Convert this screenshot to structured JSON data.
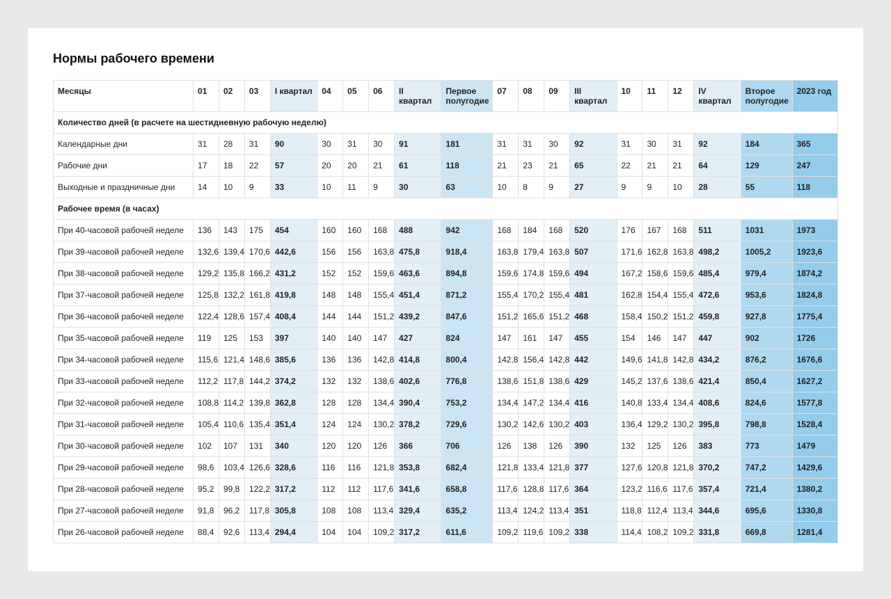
{
  "title": "Нормы рабочего времени",
  "columns": [
    {
      "key": "label",
      "label": "Месяцы",
      "cls": "row-label"
    },
    {
      "key": "m1",
      "label": "01",
      "cls": "m"
    },
    {
      "key": "m2",
      "label": "02",
      "cls": "m"
    },
    {
      "key": "m3",
      "label": "03",
      "cls": "m"
    },
    {
      "key": "q1",
      "label": "I квартал",
      "cls": "qc q1"
    },
    {
      "key": "m4",
      "label": "04",
      "cls": "m"
    },
    {
      "key": "m5",
      "label": "05",
      "cls": "m"
    },
    {
      "key": "m6",
      "label": "06",
      "cls": "m"
    },
    {
      "key": "q2",
      "label": "II квартал",
      "cls": "qc q2"
    },
    {
      "key": "h1",
      "label": "Первое полугодие",
      "cls": "hc h1c"
    },
    {
      "key": "m7",
      "label": "07",
      "cls": "m"
    },
    {
      "key": "m8",
      "label": "08",
      "cls": "m"
    },
    {
      "key": "m9",
      "label": "09",
      "cls": "m"
    },
    {
      "key": "q3",
      "label": "III квартал",
      "cls": "qc q3"
    },
    {
      "key": "m10",
      "label": "10",
      "cls": "m"
    },
    {
      "key": "m11",
      "label": "11",
      "cls": "m"
    },
    {
      "key": "m12",
      "label": "12",
      "cls": "m"
    },
    {
      "key": "q4",
      "label": "IV квартал",
      "cls": "qc q4"
    },
    {
      "key": "h2",
      "label": "Второе полугодие",
      "cls": "hc h2c"
    },
    {
      "key": "yr",
      "label": "2023 год",
      "cls": "yc yr"
    }
  ],
  "sections": [
    {
      "title": "Количество дней (в расчете на шестидневную рабочую неделю)",
      "rows": [
        {
          "label": "Календарные дни",
          "v": [
            "31",
            "28",
            "31",
            "90",
            "30",
            "31",
            "30",
            "91",
            "181",
            "31",
            "31",
            "30",
            "92",
            "31",
            "30",
            "31",
            "92",
            "184",
            "365"
          ]
        },
        {
          "label": "Рабочие дни",
          "v": [
            "17",
            "18",
            "22",
            "57",
            "20",
            "20",
            "21",
            "61",
            "118",
            "21",
            "23",
            "21",
            "65",
            "22",
            "21",
            "21",
            "64",
            "129",
            "247"
          ]
        },
        {
          "label": "Выходные и праздничные дни",
          "v": [
            "14",
            "10",
            "9",
            "33",
            "10",
            "11",
            "9",
            "30",
            "63",
            "10",
            "8",
            "9",
            "27",
            "9",
            "9",
            "10",
            "28",
            "55",
            "118"
          ]
        }
      ]
    },
    {
      "title": "Рабочее время (в часах)",
      "rows": [
        {
          "label": "При 40-часовой рабочей неделе",
          "v": [
            "136",
            "143",
            "175",
            "454",
            "160",
            "160",
            "168",
            "488",
            "942",
            "168",
            "184",
            "168",
            "520",
            "176",
            "167",
            "168",
            "511",
            "1031",
            "1973"
          ]
        },
        {
          "label": "При 39-часовой рабочей неделе",
          "v": [
            "132,6",
            "139,4",
            "170,6",
            "442,6",
            "156",
            "156",
            "163,8",
            "475,8",
            "918,4",
            "163,8",
            "179,4",
            "163,8",
            "507",
            "171,6",
            "162,8",
            "163,8",
            "498,2",
            "1005,2",
            "1923,6"
          ]
        },
        {
          "label": "При 38-часовой рабочей неделе",
          "v": [
            "129,2",
            "135,8",
            "166,2",
            "431,2",
            "152",
            "152",
            "159,6",
            "463,6",
            "894,8",
            "159,6",
            "174,8",
            "159,6",
            "494",
            "167,2",
            "158,6",
            "159,6",
            "485,4",
            "979,4",
            "1874,2"
          ]
        },
        {
          "label": "При 37-часовой рабочей неделе",
          "v": [
            "125,8",
            "132,2",
            "161,8",
            "419,8",
            "148",
            "148",
            "155,4",
            "451,4",
            "871,2",
            "155,4",
            "170,2",
            "155,4",
            "481",
            "162,8",
            "154,4",
            "155,4",
            "472,6",
            "953,6",
            "1824,8"
          ]
        },
        {
          "label": "При 36-часовой рабочей неделе",
          "v": [
            "122,4",
            "128,6",
            "157,4",
            "408,4",
            "144",
            "144",
            "151,2",
            "439,2",
            "847,6",
            "151,2",
            "165,6",
            "151,2",
            "468",
            "158,4",
            "150,2",
            "151,2",
            "459,8",
            "927,8",
            "1775,4"
          ]
        },
        {
          "label": "При 35-часовой рабочей неделе",
          "v": [
            "119",
            "125",
            "153",
            "397",
            "140",
            "140",
            "147",
            "427",
            "824",
            "147",
            "161",
            "147",
            "455",
            "154",
            "146",
            "147",
            "447",
            "902",
            "1726"
          ]
        },
        {
          "label": "При 34-часовой рабочей неделе",
          "v": [
            "115,6",
            "121,4",
            "148,6",
            "385,6",
            "136",
            "136",
            "142,8",
            "414,8",
            "800,4",
            "142,8",
            "156,4",
            "142,8",
            "442",
            "149,6",
            "141,8",
            "142,8",
            "434,2",
            "876,2",
            "1676,6"
          ]
        },
        {
          "label": "При 33-часовой рабочей неделе",
          "v": [
            "112,2",
            "117,8",
            "144,2",
            "374,2",
            "132",
            "132",
            "138,6",
            "402,6",
            "776,8",
            "138,6",
            "151,8",
            "138,6",
            "429",
            "145,2",
            "137,6",
            "138,6",
            "421,4",
            "850,4",
            "1627,2"
          ]
        },
        {
          "label": "При 32-часовой рабочей неделе",
          "v": [
            "108,8",
            "114,2",
            "139,8",
            "362,8",
            "128",
            "128",
            "134,4",
            "390,4",
            "753,2",
            "134,4",
            "147,2",
            "134,4",
            "416",
            "140,8",
            "133,4",
            "134,4",
            "408,6",
            "824,6",
            "1577,8"
          ]
        },
        {
          "label": "При 31-часовой рабочей неделе",
          "v": [
            "105,4",
            "110,6",
            "135,4",
            "351,4",
            "124",
            "124",
            "130,2",
            "378,2",
            "729,6",
            "130,2",
            "142,6",
            "130,2",
            "403",
            "136,4",
            "129,2",
            "130,2",
            "395,8",
            "798,8",
            "1528,4"
          ]
        },
        {
          "label": "При 30-часовой рабочей неделе",
          "v": [
            "102",
            "107",
            "131",
            "340",
            "120",
            "120",
            "126",
            "366",
            "706",
            "126",
            "138",
            "126",
            "390",
            "132",
            "125",
            "126",
            "383",
            "773",
            "1479"
          ]
        },
        {
          "label": "При 29-часовой рабочей неделе",
          "v": [
            "98,6",
            "103,4",
            "126,6",
            "328,6",
            "116",
            "116",
            "121,8",
            "353,8",
            "682,4",
            "121,8",
            "133,4",
            "121,8",
            "377",
            "127,6",
            "120,8",
            "121,8",
            "370,2",
            "747,2",
            "1429,6"
          ]
        },
        {
          "label": "При 28-часовой рабочей неделе",
          "v": [
            "95,2",
            "99,8",
            "122,2",
            "317,2",
            "112",
            "112",
            "117,6",
            "341,6",
            "658,8",
            "117,6",
            "128,8",
            "117,6",
            "364",
            "123,2",
            "116,6",
            "117,6",
            "357,4",
            "721,4",
            "1380,2"
          ]
        },
        {
          "label": "При 27-часовой рабочей неделе",
          "v": [
            "91,8",
            "96,2",
            "117,8",
            "305,8",
            "108",
            "108",
            "113,4",
            "329,4",
            "635,2",
            "113,4",
            "124,2",
            "113,4",
            "351",
            "118,8",
            "112,4",
            "113,4",
            "344,6",
            "695,6",
            "1330,8"
          ]
        },
        {
          "label": "При 26-часовой рабочей неделе",
          "v": [
            "88,4",
            "92,6",
            "113,4",
            "294,4",
            "104",
            "104",
            "109,2",
            "317,2",
            "611,6",
            "109,2",
            "119,6",
            "109,2",
            "338",
            "114,4",
            "108,2",
            "109,2",
            "331,8",
            "669,8",
            "1281,4"
          ]
        }
      ]
    }
  ],
  "colors": {
    "page_bg": "#e9e9e9",
    "card_bg": "#ffffff",
    "border": "#e0e0e0",
    "q_bg": "#e3eff7",
    "h1_bg": "#cbe5f4",
    "h2_bg": "#b0d8ef",
    "yr_bg": "#94ccec"
  }
}
